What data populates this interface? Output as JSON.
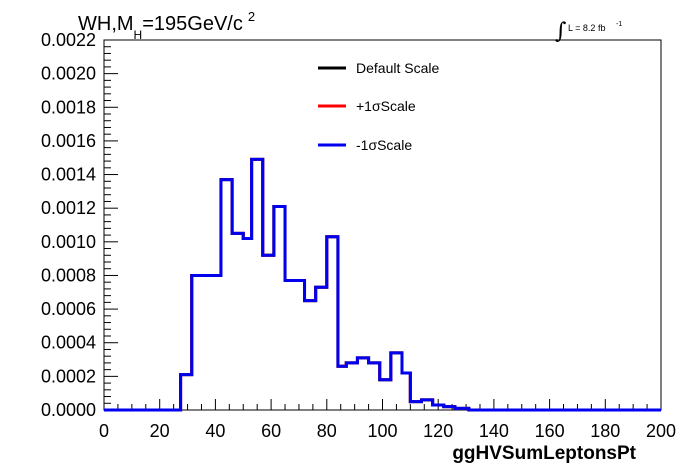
{
  "chart_data": {
    "type": "line",
    "title_main": "WH,M",
    "title_sub": "H",
    "title_rest": "=195GeV/c",
    "title_sup": "2",
    "lumi_label": "L = 8.2 fb",
    "lumi_sup": "-1",
    "xlabel": "ggHVSumLeptonsPt",
    "xlim": [
      0,
      200
    ],
    "ylim": [
      0,
      0.0022
    ],
    "x_ticks": [
      "0",
      "20",
      "40",
      "60",
      "80",
      "100",
      "120",
      "140",
      "160",
      "180",
      "200"
    ],
    "y_ticks": [
      "0.0000",
      "0.0002",
      "0.0004",
      "0.0006",
      "0.0008",
      "0.0010",
      "0.0012",
      "0.0014",
      "0.0016",
      "0.0018",
      "0.0020",
      "0.0022"
    ],
    "legend_position": "top-center",
    "bin_edges": [
      0,
      27.5,
      31.5,
      35.5,
      42,
      46,
      50,
      53,
      57,
      61,
      65,
      72,
      76,
      80,
      84,
      87,
      91,
      95,
      99,
      103,
      107,
      110,
      114,
      118,
      122,
      126,
      131,
      134,
      200
    ],
    "series": [
      {
        "name": "Default Scale",
        "color": "#000000",
        "values": [
          0,
          0.00021,
          0.0008,
          0.0008,
          0.00137,
          0.00105,
          0.00102,
          0.00149,
          0.00092,
          0.00121,
          0.00077,
          0.00065,
          0.00073,
          0.00103,
          0.00026,
          0.00028,
          0.00031,
          0.00028,
          0.00018,
          0.00034,
          0.00022,
          5e-05,
          6e-05,
          3e-05,
          2e-05,
          1e-05,
          0,
          0
        ]
      },
      {
        "name": "+1σScale",
        "color": "#ff0000",
        "values": [
          0,
          0.00021,
          0.0008,
          0.0008,
          0.00137,
          0.00105,
          0.00102,
          0.00149,
          0.00092,
          0.00121,
          0.00077,
          0.00065,
          0.00073,
          0.00103,
          0.00026,
          0.00028,
          0.00031,
          0.00028,
          0.00018,
          0.00034,
          0.00022,
          5e-05,
          6e-05,
          3e-05,
          2e-05,
          1e-05,
          0,
          0
        ]
      },
      {
        "name": "-1σScale",
        "color": "#0000ee",
        "values": [
          0,
          0.00021,
          0.0008,
          0.0008,
          0.00137,
          0.00105,
          0.00102,
          0.00149,
          0.00092,
          0.00121,
          0.00077,
          0.00065,
          0.00073,
          0.00103,
          0.00026,
          0.00028,
          0.00031,
          0.00028,
          0.00018,
          0.00034,
          0.00022,
          5e-05,
          6e-05,
          3e-05,
          2e-05,
          1e-05,
          0,
          0
        ]
      }
    ]
  }
}
